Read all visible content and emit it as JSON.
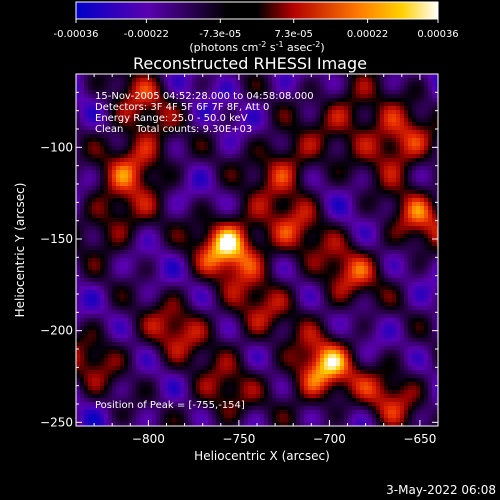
{
  "colorbar": {
    "ticks": [
      "-0.00036",
      "-0.00022",
      "-7.3e-05",
      "7.3e-05",
      "0.00022",
      "0.00036"
    ],
    "tick_values": [
      -0.00036,
      -0.00022,
      -7.3e-05,
      7.3e-05,
      0.00022,
      0.00036
    ],
    "range": [
      -0.00036,
      0.00036
    ],
    "unit_label": "(photons cm",
    "unit_sup1": "-2",
    "unit_mid": " s",
    "unit_sup2": "-1",
    "unit_mid2": " asec",
    "unit_sup3": "-2",
    "unit_end": ")",
    "colors": [
      "#0000c8",
      "#6a00a0",
      "#000000",
      "#b40000",
      "#ff7a00",
      "#ffd000",
      "#ffffff"
    ]
  },
  "chart_data": {
    "type": "heatmap",
    "title": "Reconstructed RHESSI Image",
    "xlabel": "Heliocentric X (arcsec)",
    "ylabel": "Heliocentric Y (arcsec)",
    "xlim": [
      -840,
      -640
    ],
    "ylim": [
      -252,
      -60
    ],
    "x_ticks": [
      -800,
      -750,
      -700,
      -650
    ],
    "y_ticks": [
      -100,
      -150,
      -200,
      -250
    ],
    "x_tick_labels": [
      "−800",
      "−750",
      "−700",
      "−650"
    ],
    "y_tick_labels": [
      "−100",
      "−150",
      "−200",
      "−250"
    ],
    "info_lines": [
      "15-Nov-2005 04:52:28.000 to 04:58:08.000",
      "Detectors: 3F 4F 5F 6F 7F 8F, Att 0",
      "Energy Range: 25.0 - 50.0 keV",
      "Clean    Total counts: 9.30E+03"
    ],
    "peak_label": "Position of Peak = [-755,-154]",
    "peak_position": [
      -755,
      -154
    ],
    "grid": false,
    "hotspots": [
      {
        "x": -755,
        "y": -154,
        "v": 1.0
      },
      {
        "x": -705,
        "y": -222,
        "v": 0.95
      },
      {
        "x": -662,
        "y": -98,
        "v": 0.8
      },
      {
        "x": -805,
        "y": -108,
        "v": 0.7
      },
      {
        "x": -725,
        "y": -110,
        "v": 0.65
      },
      {
        "x": -650,
        "y": -140,
        "v": 0.6
      },
      {
        "x": -690,
        "y": -170,
        "v": 0.6
      },
      {
        "x": -820,
        "y": -140,
        "v": 0.55
      },
      {
        "x": -785,
        "y": -200,
        "v": 0.55
      },
      {
        "x": -760,
        "y": -235,
        "v": 0.5
      },
      {
        "x": -665,
        "y": -235,
        "v": 0.55
      },
      {
        "x": -740,
        "y": -190,
        "v": 0.5
      },
      {
        "x": -805,
        "y": -75,
        "v": 0.5
      },
      {
        "x": -690,
        "y": -80,
        "v": 0.55
      },
      {
        "x": -830,
        "y": -215,
        "v": 0.45
      },
      {
        "x": -720,
        "y": -145,
        "v": 0.5
      }
    ]
  },
  "footer": {
    "timestamp": "3-May-2022 06:08"
  }
}
